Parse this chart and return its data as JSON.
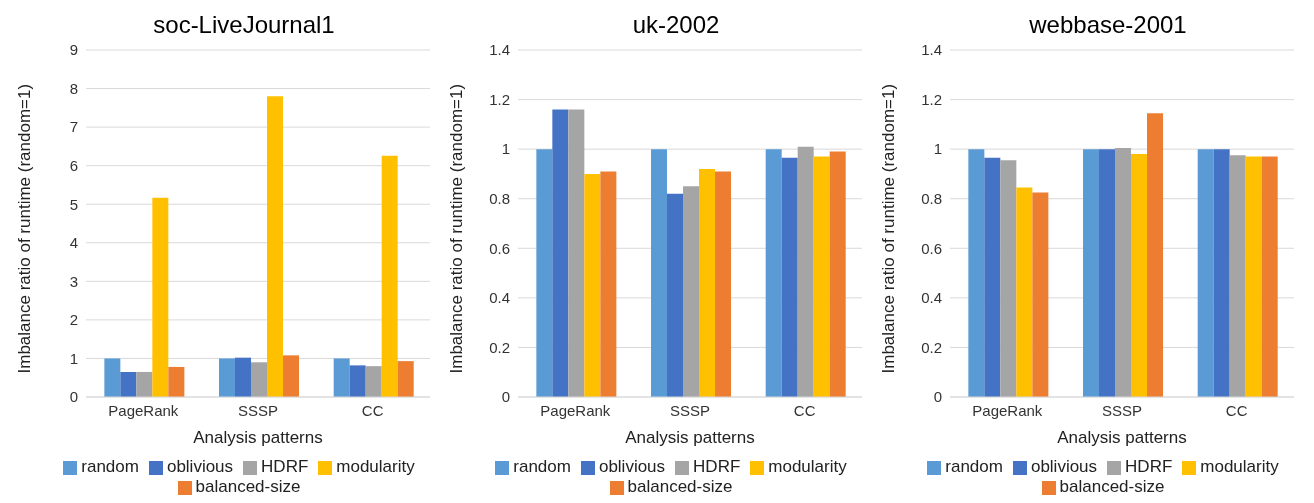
{
  "chart_data": [
    {
      "type": "bar",
      "title": "soc-LiveJournal1",
      "xlabel": "Analysis patterns",
      "ylabel": "Imbalance ratio of runtime (random=1)",
      "categories": [
        "PageRank",
        "SSSP",
        "CC"
      ],
      "series": [
        {
          "name": "random",
          "color": "#5b9bd5",
          "values": [
            1,
            1,
            1
          ]
        },
        {
          "name": "oblivious",
          "color": "#4472c4",
          "values": [
            0.65,
            1.02,
            0.82
          ]
        },
        {
          "name": "HDRF",
          "color": "#a5a5a5",
          "values": [
            0.65,
            0.9,
            0.8
          ]
        },
        {
          "name": "modularity",
          "color": "#ffc000",
          "values": [
            5.17,
            7.8,
            6.26
          ]
        },
        {
          "name": "balanced-size",
          "color": "#ed7d31",
          "values": [
            0.78,
            1.08,
            0.93
          ]
        }
      ],
      "ylim": [
        0,
        9
      ],
      "yticks": [
        0,
        1,
        2,
        3,
        4,
        5,
        6,
        7,
        8,
        9
      ],
      "grid": "y",
      "legend": "bottom"
    },
    {
      "type": "bar",
      "title": "uk-2002",
      "xlabel": "Analysis patterns",
      "ylabel": "Imbalance ratio of runtime (random=1)",
      "categories": [
        "PageRank",
        "SSSP",
        "CC"
      ],
      "series": [
        {
          "name": "random",
          "color": "#5b9bd5",
          "values": [
            1,
            1,
            1
          ]
        },
        {
          "name": "oblivious",
          "color": "#4472c4",
          "values": [
            1.16,
            0.82,
            0.965
          ]
        },
        {
          "name": "HDRF",
          "color": "#a5a5a5",
          "values": [
            1.16,
            0.85,
            1.01
          ]
        },
        {
          "name": "modularity",
          "color": "#ffc000",
          "values": [
            0.9,
            0.92,
            0.97
          ]
        },
        {
          "name": "balanced-size",
          "color": "#ed7d31",
          "values": [
            0.91,
            0.91,
            0.99
          ]
        }
      ],
      "ylim": [
        0,
        1.4
      ],
      "yticks": [
        0,
        0.2,
        0.4,
        0.6,
        0.8,
        1,
        1.2,
        1.4
      ],
      "grid": "y",
      "legend": "bottom"
    },
    {
      "type": "bar",
      "title": "webbase-2001",
      "xlabel": "Analysis patterns",
      "ylabel": "Imbalance ratio of runtime (random=1)",
      "categories": [
        "PageRank",
        "SSSP",
        "CC"
      ],
      "series": [
        {
          "name": "random",
          "color": "#5b9bd5",
          "values": [
            1,
            1,
            1
          ]
        },
        {
          "name": "oblivious",
          "color": "#4472c4",
          "values": [
            0.965,
            1,
            1
          ]
        },
        {
          "name": "HDRF",
          "color": "#a5a5a5",
          "values": [
            0.955,
            1.005,
            0.975
          ]
        },
        {
          "name": "modularity",
          "color": "#ffc000",
          "values": [
            0.845,
            0.98,
            0.97
          ]
        },
        {
          "name": "balanced-size",
          "color": "#ed7d31",
          "values": [
            0.825,
            1.145,
            0.97
          ]
        }
      ],
      "ylim": [
        0,
        1.4
      ],
      "yticks": [
        0,
        0.2,
        0.4,
        0.6,
        0.8,
        1,
        1.2,
        1.4
      ],
      "grid": "y",
      "legend": "bottom"
    }
  ]
}
